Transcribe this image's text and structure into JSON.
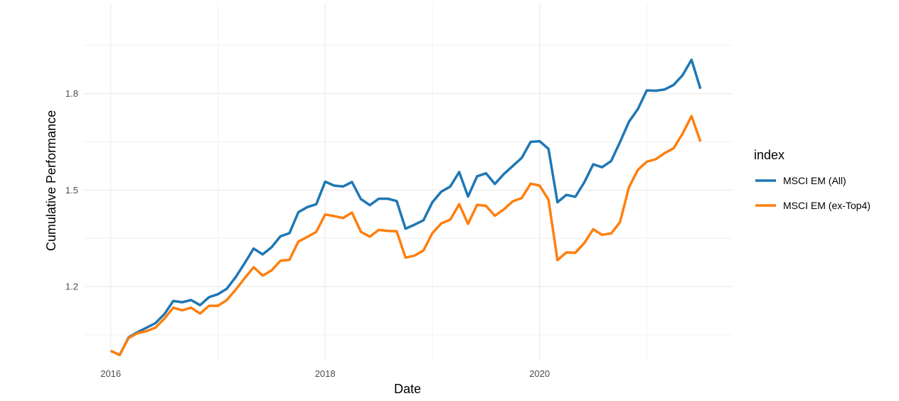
{
  "chart_data": {
    "type": "line",
    "xlabel": "Date",
    "ylabel": "Cumulative Performance",
    "xlim": [
      2015.75,
      2021.8
    ],
    "ylim": [
      0.97,
      2.08
    ],
    "x_ticks": [
      2016,
      2018,
      2020
    ],
    "y_ticks": [
      1.2,
      1.5,
      1.8
    ],
    "grid": true,
    "legend": {
      "title": "index",
      "position": "right"
    },
    "x": [
      2016.0,
      2016.083,
      2016.167,
      2016.25,
      2016.333,
      2016.417,
      2016.5,
      2016.583,
      2016.667,
      2016.75,
      2016.833,
      2016.917,
      2017.0,
      2017.083,
      2017.167,
      2017.25,
      2017.333,
      2017.417,
      2017.5,
      2017.583,
      2017.667,
      2017.75,
      2017.833,
      2017.917,
      2018.0,
      2018.083,
      2018.167,
      2018.25,
      2018.333,
      2018.417,
      2018.5,
      2018.583,
      2018.667,
      2018.75,
      2018.833,
      2018.917,
      2019.0,
      2019.083,
      2019.167,
      2019.25,
      2019.333,
      2019.417,
      2019.5,
      2019.583,
      2019.667,
      2019.75,
      2019.833,
      2019.917,
      2020.0,
      2020.083,
      2020.167,
      2020.25,
      2020.333,
      2020.417,
      2020.5,
      2020.583,
      2020.667,
      2020.75,
      2020.833,
      2020.917,
      2021.0,
      2021.083,
      2021.167,
      2021.25,
      2021.333,
      2021.417,
      2021.5
    ],
    "series": [
      {
        "name": "MSCI EM (All)",
        "color": "#1f77b4",
        "values": [
          1.0,
          0.987,
          1.042,
          1.058,
          1.072,
          1.086,
          1.114,
          1.155,
          1.151,
          1.158,
          1.142,
          1.167,
          1.176,
          1.193,
          1.23,
          1.273,
          1.318,
          1.3,
          1.322,
          1.356,
          1.366,
          1.431,
          1.447,
          1.456,
          1.526,
          1.514,
          1.511,
          1.525,
          1.472,
          1.453,
          1.473,
          1.473,
          1.466,
          1.38,
          1.392,
          1.406,
          1.462,
          1.495,
          1.511,
          1.556,
          1.48,
          1.543,
          1.552,
          1.519,
          1.55,
          1.575,
          1.6,
          1.65,
          1.652,
          1.628,
          1.462,
          1.485,
          1.479,
          1.524,
          1.58,
          1.571,
          1.59,
          1.649,
          1.712,
          1.752,
          1.81,
          1.809,
          1.813,
          1.827,
          1.857,
          1.905,
          1.815
        ]
      },
      {
        "name": "MSCI EM (ex-Top4)",
        "color": "#ff7f0e",
        "values": [
          1.0,
          0.987,
          1.04,
          1.055,
          1.061,
          1.072,
          1.1,
          1.134,
          1.126,
          1.134,
          1.116,
          1.14,
          1.14,
          1.158,
          1.191,
          1.226,
          1.26,
          1.234,
          1.25,
          1.28,
          1.283,
          1.34,
          1.354,
          1.37,
          1.424,
          1.419,
          1.413,
          1.43,
          1.37,
          1.355,
          1.376,
          1.373,
          1.372,
          1.29,
          1.296,
          1.312,
          1.366,
          1.396,
          1.408,
          1.456,
          1.395,
          1.454,
          1.451,
          1.42,
          1.44,
          1.465,
          1.475,
          1.52,
          1.514,
          1.47,
          1.282,
          1.306,
          1.305,
          1.335,
          1.378,
          1.361,
          1.365,
          1.4,
          1.508,
          1.563,
          1.588,
          1.596,
          1.615,
          1.63,
          1.675,
          1.73,
          1.651
        ]
      }
    ]
  }
}
